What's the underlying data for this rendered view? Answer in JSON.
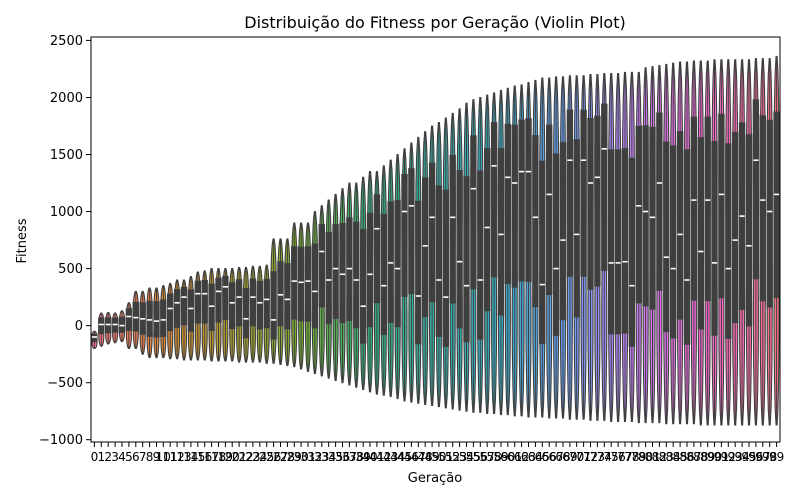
{
  "chart_data": {
    "type": "violin",
    "title": "Distribuição do Fitness por Geração (Violin Plot)",
    "xlabel": "Geração",
    "ylabel": "Fitness",
    "ylim": [
      -1020,
      2530
    ],
    "yticks": [
      -1000,
      -500,
      0,
      500,
      1000,
      1500,
      2000,
      2500
    ],
    "categories": [
      "0",
      "1",
      "2",
      "3",
      "4",
      "5",
      "6",
      "7",
      "8",
      "9",
      "10",
      "11",
      "12",
      "13",
      "14",
      "15",
      "16",
      "17",
      "18",
      "19",
      "20",
      "21",
      "22",
      "23",
      "24",
      "25",
      "26",
      "27",
      "28",
      "29",
      "30",
      "31",
      "32",
      "33",
      "34",
      "35",
      "36",
      "37",
      "38",
      "39",
      "40",
      "41",
      "42",
      "43",
      "44",
      "45",
      "46",
      "47",
      "48",
      "49",
      "50",
      "51",
      "52",
      "53",
      "54",
      "55",
      "56",
      "57",
      "58",
      "59",
      "60",
      "61",
      "62",
      "63",
      "64",
      "65",
      "66",
      "67",
      "68",
      "69",
      "70",
      "71",
      "72",
      "73",
      "74",
      "75",
      "76",
      "77",
      "78",
      "79",
      "80",
      "81",
      "82",
      "83",
      "84",
      "85",
      "86",
      "87",
      "88",
      "89",
      "90",
      "91",
      "92",
      "93",
      "94",
      "95",
      "96",
      "97",
      "98",
      "99"
    ],
    "max_values": [
      -50,
      110,
      115,
      110,
      130,
      200,
      300,
      300,
      330,
      330,
      350,
      370,
      400,
      400,
      430,
      470,
      480,
      500,
      500,
      500,
      500,
      510,
      510,
      520,
      520,
      530,
      760,
      760,
      760,
      900,
      900,
      900,
      1000,
      1050,
      1100,
      1150,
      1200,
      1250,
      1250,
      1300,
      1350,
      1350,
      1400,
      1450,
      1500,
      1550,
      1600,
      1650,
      1700,
      1750,
      1780,
      1820,
      1860,
      1900,
      1950,
      1980,
      2000,
      2020,
      2040,
      2060,
      2080,
      2100,
      2110,
      2130,
      2150,
      2170,
      2170,
      2180,
      2180,
      2190,
      2190,
      2190,
      2200,
      2200,
      2210,
      2210,
      2210,
      2220,
      2220,
      2220,
      2260,
      2270,
      2280,
      2290,
      2300,
      2310,
      2310,
      2320,
      2320,
      2320,
      2330,
      2330,
      2330,
      2330,
      2330,
      2330,
      2340,
      2340,
      2340,
      2360
    ],
    "min_values": [
      -200,
      -180,
      -160,
      -150,
      -140,
      -200,
      -200,
      -250,
      -280,
      -280,
      -280,
      -290,
      -290,
      -300,
      -300,
      -300,
      -300,
      -310,
      -310,
      -310,
      -310,
      -320,
      -320,
      -320,
      -320,
      -330,
      -330,
      -340,
      -350,
      -360,
      -380,
      -400,
      -420,
      -440,
      -460,
      -480,
      -500,
      -520,
      -540,
      -560,
      -580,
      -600,
      -610,
      -620,
      -640,
      -660,
      -670,
      -680,
      -690,
      -700,
      -710,
      -720,
      -730,
      -740,
      -750,
      -760,
      -760,
      -770,
      -770,
      -780,
      -780,
      -790,
      -790,
      -800,
      -800,
      -800,
      -810,
      -810,
      -810,
      -820,
      -820,
      -820,
      -830,
      -830,
      -830,
      -840,
      -840,
      -840,
      -840,
      -850,
      -850,
      -850,
      -850,
      -860,
      -860,
      -860,
      -860,
      -860,
      -870,
      -870,
      -870,
      -870,
      -870,
      -870,
      -870,
      -870,
      -870,
      -870,
      -870,
      -870
    ],
    "medians": [
      -100,
      10,
      10,
      10,
      0,
      80,
      70,
      60,
      50,
      40,
      50,
      150,
      200,
      250,
      150,
      280,
      280,
      170,
      300,
      340,
      200,
      250,
      60,
      250,
      200,
      230,
      50,
      270,
      230,
      390,
      380,
      390,
      300,
      650,
      400,
      500,
      450,
      500,
      400,
      170,
      450,
      850,
      350,
      550,
      500,
      1000,
      1050,
      260,
      700,
      950,
      400,
      250,
      950,
      560,
      350,
      1200,
      400,
      860,
      1400,
      800,
      1300,
      1250,
      1350,
      1350,
      950,
      360,
      1150,
      500,
      750,
      1450,
      800,
      1450,
      1250,
      1300,
      1550,
      550,
      550,
      560,
      350,
      1050,
      1000,
      950,
      1250,
      600,
      500,
      800,
      400,
      1100,
      650,
      1100,
      550,
      1150,
      500,
      750,
      960,
      700,
      1450,
      1100,
      1000,
      1150
    ],
    "quartile_boxes": "median white dash, dark gray inner box"
  }
}
